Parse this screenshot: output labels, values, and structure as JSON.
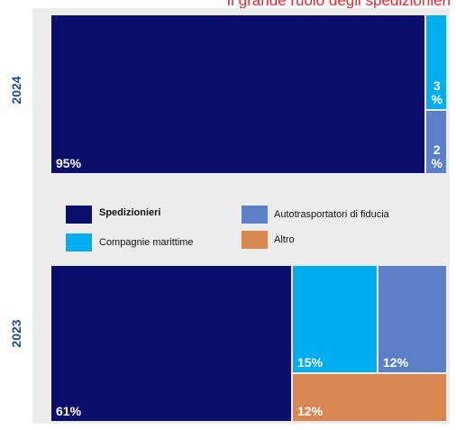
{
  "title": "Il grande ruolo degli spedizionieri",
  "colors": {
    "spedizionieri": "#0b0f6b",
    "compagnie": "#00aeef",
    "autotrasportatori": "#5b80c8",
    "altro": "#d98651"
  },
  "legend": [
    {
      "key": "spedizionieri",
      "label": "Spedizionieri"
    },
    {
      "key": "compagnie",
      "label": "Compagnie marittime"
    },
    {
      "key": "autotrasportatori",
      "label": "Autotrasportatori di fiducia"
    },
    {
      "key": "altro",
      "label": "Altro"
    }
  ],
  "chart_data": [
    {
      "type": "treemap",
      "year": "2024",
      "slices": [
        {
          "key": "spedizionieri",
          "value": 95,
          "label": "95%"
        },
        {
          "key": "compagnie",
          "value": 3,
          "label": "3\n%"
        },
        {
          "key": "autotrasportatori",
          "value": 2,
          "label": "2\n%"
        }
      ]
    },
    {
      "type": "treemap",
      "year": "2023",
      "slices": [
        {
          "key": "spedizionieri",
          "value": 61,
          "label": "61%"
        },
        {
          "key": "compagnie",
          "value": 15,
          "label": "15%"
        },
        {
          "key": "autotrasportatori",
          "value": 12,
          "label": "12%"
        },
        {
          "key": "altro",
          "value": 12,
          "label": "12%"
        }
      ]
    }
  ]
}
